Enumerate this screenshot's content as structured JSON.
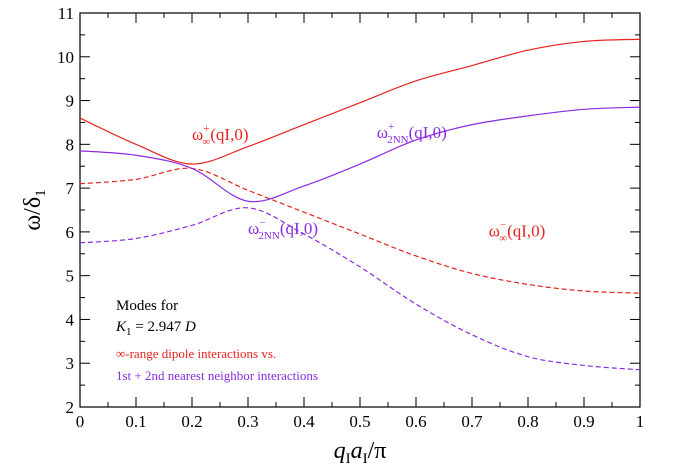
{
  "chart_data": {
    "type": "line",
    "xlabel": "q_I a_I / π",
    "ylabel": "ω/δ_1",
    "xlim": [
      0,
      1
    ],
    "ylim": [
      2,
      11
    ],
    "xticks": [
      0,
      0.1,
      0.2,
      0.3,
      0.4,
      0.5,
      0.6,
      0.7,
      0.8,
      0.9,
      1
    ],
    "xtick_labels": [
      "0",
      "0.1",
      "0.2",
      "0.3",
      "0.4",
      "0.5",
      "0.6",
      "0.7",
      "0.8",
      "0.9",
      "1"
    ],
    "yticks": [
      2,
      3,
      4,
      5,
      6,
      7,
      8,
      9,
      10,
      11
    ],
    "ytick_labels": [
      "2",
      "3",
      "4",
      "5",
      "6",
      "7",
      "8",
      "9",
      "10",
      "11"
    ],
    "grid": false,
    "colors": {
      "infinite_range": "#e8221e",
      "nearest_neighbor": "#8a2be2"
    },
    "series": [
      {
        "name": "ω∞+(qI,0)",
        "color": "#e8221e",
        "style": "solid",
        "x": [
          0,
          0.1,
          0.2,
          0.3,
          0.4,
          0.5,
          0.6,
          0.7,
          0.8,
          0.9,
          1
        ],
        "y": [
          8.6,
          8.0,
          7.55,
          7.95,
          8.45,
          8.95,
          9.45,
          9.8,
          10.15,
          10.35,
          10.4
        ]
      },
      {
        "name": "ω∞−(qI,0)",
        "color": "#e8221e",
        "style": "dashed",
        "x": [
          0,
          0.1,
          0.2,
          0.3,
          0.4,
          0.5,
          0.6,
          0.7,
          0.8,
          0.9,
          1
        ],
        "y": [
          7.1,
          7.2,
          7.45,
          6.95,
          6.45,
          5.95,
          5.45,
          5.05,
          4.8,
          4.65,
          4.6
        ]
      },
      {
        "name": "ω2NN+(qI,0)",
        "color": "#8a2be2",
        "style": "solid",
        "x": [
          0,
          0.1,
          0.2,
          0.3,
          0.4,
          0.5,
          0.6,
          0.7,
          0.8,
          0.9,
          1
        ],
        "y": [
          7.85,
          7.75,
          7.45,
          6.7,
          7.05,
          7.55,
          8.1,
          8.45,
          8.65,
          8.8,
          8.85
        ]
      },
      {
        "name": "ω2NN−(qI,0)",
        "color": "#8a2be2",
        "style": "dashed",
        "x": [
          0,
          0.1,
          0.2,
          0.3,
          0.4,
          0.5,
          0.6,
          0.7,
          0.8,
          0.9,
          1
        ],
        "y": [
          5.75,
          5.85,
          6.15,
          6.55,
          5.95,
          5.2,
          4.35,
          3.65,
          3.15,
          2.95,
          2.85
        ]
      }
    ],
    "curve_labels": [
      {
        "base": "ω",
        "sup": "+",
        "sub": "∞",
        "arg": "(qI,0)",
        "color": "#e8221e",
        "x": 0.2,
        "y": 8.1
      },
      {
        "base": "ω",
        "sup": "+",
        "sub": "2NN",
        "arg": "(qI,0)",
        "color": "#8a2be2",
        "x": 0.53,
        "y": 8.15
      },
      {
        "base": "ω",
        "sup": "−",
        "sub": "2NN",
        "arg": "(qI,0)",
        "color": "#8a2be2",
        "x": 0.3,
        "y": 5.95
      },
      {
        "base": "ω",
        "sup": "−",
        "sub": "∞",
        "arg": "(qI,0)",
        "color": "#e8221e",
        "x": 0.73,
        "y": 5.9
      }
    ],
    "annotations": [
      {
        "text": "Modes for",
        "color": "#000000"
      },
      {
        "text": "K1 = 2.947 D",
        "color": "#000000"
      },
      {
        "text": "∞-range dipole interactions vs.",
        "color": "#e8221e"
      },
      {
        "text": "1st + 2nd nearest neighbor interactions",
        "color": "#8a2be2"
      }
    ]
  }
}
